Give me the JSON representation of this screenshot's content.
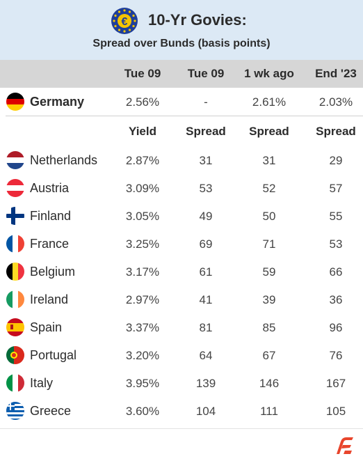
{
  "header": {
    "title": "10-Yr Govies:",
    "subtitle": "Spread over Bunds (basis points)",
    "icon": "euro-coin-icon"
  },
  "columns": [
    "Tue 09",
    "Tue 09",
    "1 wk ago",
    "End '23"
  ],
  "germany": {
    "name": "Germany",
    "values": [
      "2.56%",
      "-",
      "2.61%",
      "2.03%"
    ]
  },
  "subheader": [
    "Yield",
    "Spread",
    "Spread",
    "Spread"
  ],
  "rows": [
    {
      "name": "Netherlands",
      "values": [
        "2.87%",
        "31",
        "31",
        "29"
      ]
    },
    {
      "name": "Austria",
      "values": [
        "3.09%",
        "53",
        "52",
        "57"
      ]
    },
    {
      "name": "Finland",
      "values": [
        "3.05%",
        "49",
        "50",
        "55"
      ]
    },
    {
      "name": "France",
      "values": [
        "3.25%",
        "69",
        "71",
        "53"
      ]
    },
    {
      "name": "Belgium",
      "values": [
        "3.17%",
        "61",
        "59",
        "66"
      ]
    },
    {
      "name": "Ireland",
      "values": [
        "2.97%",
        "41",
        "39",
        "36"
      ]
    },
    {
      "name": "Spain",
      "values": [
        "3.37%",
        "81",
        "85",
        "96"
      ]
    },
    {
      "name": "Portugal",
      "values": [
        "3.20%",
        "64",
        "67",
        "76"
      ]
    },
    {
      "name": "Italy",
      "values": [
        "3.95%",
        "139",
        "146",
        "167"
      ]
    },
    {
      "name": "Greece",
      "values": [
        "3.60%",
        "104",
        "111",
        "105"
      ]
    }
  ],
  "colors": {
    "header_bg": "#dce9f5",
    "colhead_bg": "#d6d6d6",
    "logo": "#e8452c"
  }
}
